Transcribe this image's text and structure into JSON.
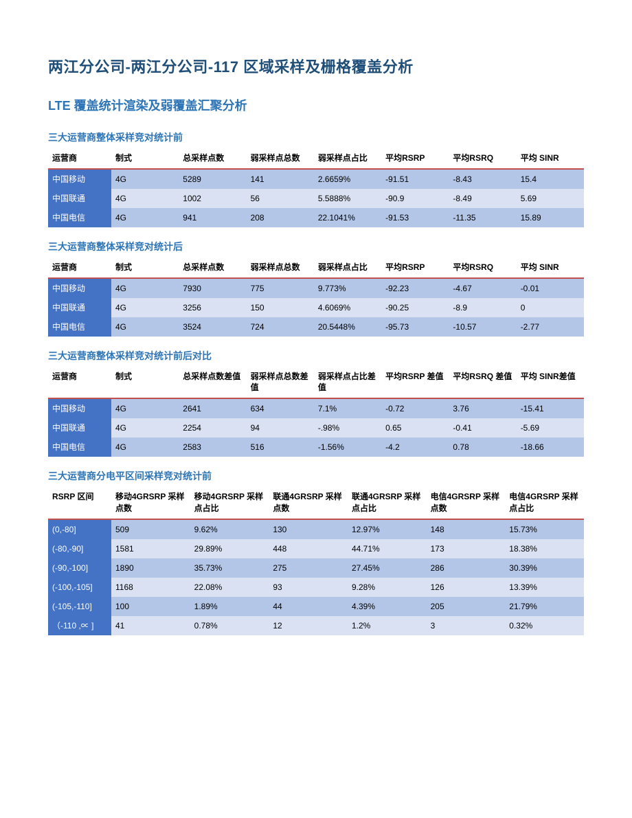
{
  "colors": {
    "title_color": "#1f4e79",
    "section_color": "#2e75b6",
    "table_title_color": "#2e75b6",
    "header_border": "#c0504d",
    "first_col_bg": "#4472c4",
    "first_col_text": "#ffffff",
    "row_dark_bg": "#b4c6e7",
    "row_light_bg": "#d9e1f2"
  },
  "page_title": "两江分公司-两江分公司-117 区域采样及栅格覆盖分析",
  "section_title": "LTE 覆盖统计渲染及弱覆盖汇聚分析",
  "table1": {
    "title": "三大运营商整体采样竞对统计前",
    "columns": [
      "运营商",
      "制式",
      "总采样点数",
      "弱采样点总数",
      "弱采样点占比",
      "平均RSRP",
      "平均RSRQ",
      "平均 SINR"
    ],
    "rows": [
      [
        "中国移动",
        "4G",
        "5289",
        "141",
        "2.6659%",
        "-91.51",
        "-8.43",
        "15.4"
      ],
      [
        "中国联通",
        "4G",
        "1002",
        "56",
        "5.5888%",
        "-90.9",
        "-8.49",
        "5.69"
      ],
      [
        "中国电信",
        "4G",
        "941",
        "208",
        "22.1041%",
        "-91.53",
        "-11.35",
        "15.89"
      ]
    ]
  },
  "table2": {
    "title": "三大运营商整体采样竞对统计后",
    "columns": [
      "运营商",
      "制式",
      "总采样点数",
      "弱采样点总数",
      "弱采样点占比",
      "平均RSRP",
      "平均RSRQ",
      "平均 SINR"
    ],
    "rows": [
      [
        "中国移动",
        "4G",
        "7930",
        "775",
        "9.773%",
        "-92.23",
        "-4.67",
        "-0.01"
      ],
      [
        "中国联通",
        "4G",
        "3256",
        "150",
        "4.6069%",
        "-90.25",
        "-8.9",
        "0"
      ],
      [
        "中国电信",
        "4G",
        "3524",
        "724",
        "20.5448%",
        "-95.73",
        "-10.57",
        "-2.77"
      ]
    ]
  },
  "table3": {
    "title": "三大运营商整体采样竞对统计前后对比",
    "columns": [
      "运营商",
      "制式",
      "总采样点数差值",
      "弱采样点总数差值",
      "弱采样点占比差值",
      "平均RSRP 差值",
      "平均RSRQ 差值",
      "平均 SINR差值"
    ],
    "rows": [
      [
        "中国移动",
        "4G",
        "2641",
        "634",
        "7.1%",
        "-0.72",
        "3.76",
        "-15.41"
      ],
      [
        "中国联通",
        "4G",
        "2254",
        "94",
        "-.98%",
        "0.65",
        "-0.41",
        "-5.69"
      ],
      [
        "中国电信",
        "4G",
        "2583",
        "516",
        "-1.56%",
        "-4.2",
        "0.78",
        "-18.66"
      ]
    ]
  },
  "table4": {
    "title": "三大运营商分电平区间采样竞对统计前",
    "columns": [
      "RSRP 区间",
      "移动4GRSRP 采样点数",
      "移动4GRSRP 采样点占比",
      "联通4GRSRP 采样点数",
      "联通4GRSRP 采样点占比",
      "电信4GRSRP 采样点数",
      "电信4GRSRP 采样点占比"
    ],
    "rows": [
      [
        "(0,-80]",
        "509",
        "9.62%",
        "130",
        "12.97%",
        "148",
        "15.73%"
      ],
      [
        "(-80,-90]",
        "1581",
        "29.89%",
        "448",
        "44.71%",
        "173",
        "18.38%"
      ],
      [
        "(-90,-100]",
        "1890",
        "35.73%",
        "275",
        "27.45%",
        "286",
        "30.39%"
      ],
      [
        "(-100,-105]",
        "1168",
        "22.08%",
        "93",
        "9.28%",
        "126",
        "13.39%"
      ],
      [
        "(-105,-110]",
        "100",
        "1.89%",
        "44",
        "4.39%",
        "205",
        "21.79%"
      ],
      [
        "（-110 ,∝ ]",
        "41",
        "0.78%",
        "12",
        "1.2%",
        "3",
        "0.32%"
      ]
    ]
  }
}
